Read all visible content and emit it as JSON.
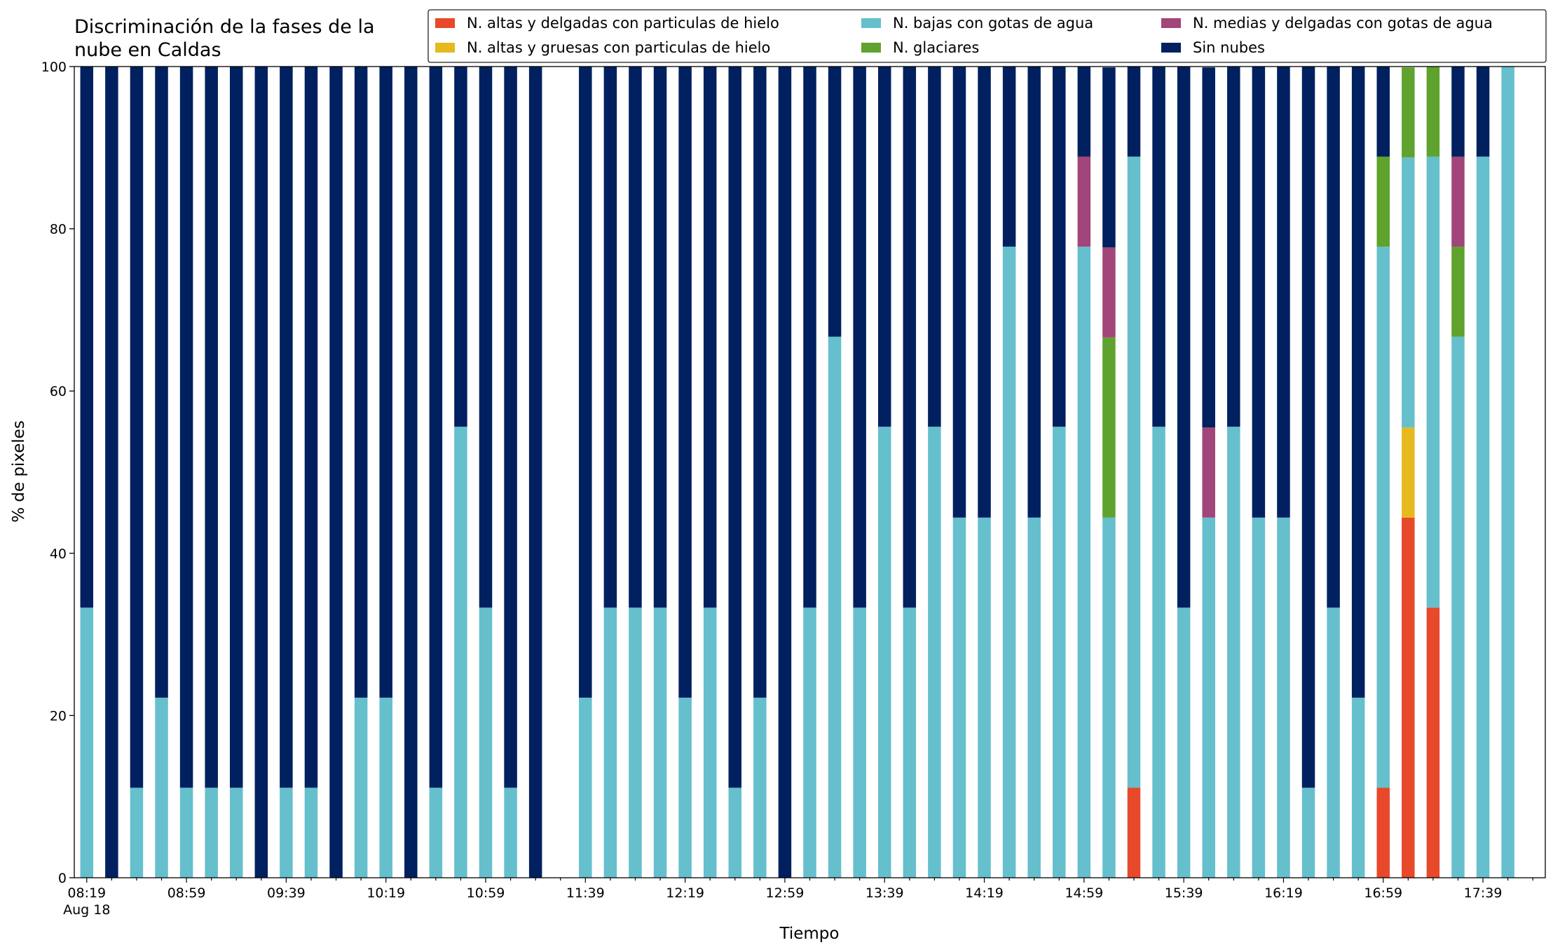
{
  "chart_data": {
    "type": "stacked_bar",
    "title": "Discriminación de la fases de la nube en Caldas",
    "x_label": "Tiempo",
    "y_label": "% de pixeles",
    "x_date_label": "Aug 18",
    "categories": [
      "08:19",
      null,
      null,
      null,
      "08:59",
      null,
      null,
      null,
      "09:39",
      null,
      null,
      null,
      "10:19",
      null,
      null,
      null,
      "10:59",
      null,
      null,
      null,
      "11:39",
      null,
      null,
      null,
      "12:19",
      null,
      null,
      null,
      "12:59",
      null,
      null,
      null,
      "13:39",
      null,
      null,
      null,
      "14:19",
      null,
      null,
      null,
      "14:59",
      null,
      null,
      null,
      "15:39",
      null,
      null,
      null,
      "16:19",
      null,
      null,
      null,
      "16:59",
      null,
      null,
      null,
      "17:39",
      null,
      null
    ],
    "series": [
      {
        "name": "N. altas y delgadas con particulas de hielo",
        "color": "#e8492b",
        "values": [
          0,
          0,
          0,
          0,
          0,
          0,
          0,
          0,
          0,
          0,
          0,
          0,
          0,
          0,
          0,
          0,
          0,
          0,
          0,
          null,
          0,
          0,
          0,
          0,
          0,
          0,
          0,
          0,
          0,
          0,
          0,
          0,
          0,
          0,
          0,
          0,
          0,
          0,
          0,
          0,
          0,
          0,
          11.1,
          0,
          0,
          0,
          0,
          0,
          0,
          0,
          0,
          0,
          11.1,
          44.4,
          33.3,
          0,
          0,
          0,
          null
        ]
      },
      {
        "name": "N. altas y gruesas con particulas de hielo",
        "color": "#e6b91e",
        "values": [
          0,
          0,
          0,
          0,
          0,
          0,
          0,
          0,
          0,
          0,
          0,
          0,
          0,
          0,
          0,
          0,
          0,
          0,
          0,
          null,
          0,
          0,
          0,
          0,
          0,
          0,
          0,
          0,
          0,
          0,
          0,
          0,
          0,
          0,
          0,
          0,
          0,
          0,
          0,
          0,
          0,
          0,
          0,
          0,
          0,
          0,
          0,
          0,
          0,
          0,
          0,
          0,
          0,
          11.1,
          0,
          0,
          0,
          0,
          null
        ]
      },
      {
        "name": "N. bajas con gotas de agua",
        "color": "#66bfcc",
        "values": [
          33.3,
          0,
          11.1,
          22.2,
          11.1,
          11.1,
          11.1,
          0,
          11.1,
          11.1,
          0,
          22.2,
          22.2,
          0,
          11.1,
          55.6,
          33.3,
          11.1,
          0,
          null,
          22.2,
          33.3,
          33.3,
          33.3,
          22.2,
          33.3,
          11.1,
          22.2,
          0,
          33.3,
          66.7,
          33.3,
          55.6,
          33.3,
          55.6,
          44.4,
          44.4,
          77.8,
          44.4,
          55.6,
          77.8,
          44.4,
          77.8,
          55.6,
          33.3,
          44.4,
          55.6,
          44.4,
          44.4,
          11.1,
          33.3,
          22.2,
          66.7,
          33.3,
          55.6,
          66.7,
          88.9,
          100,
          null
        ]
      },
      {
        "name": "N. glaciares",
        "color": "#5fa22d",
        "values": [
          0,
          0,
          0,
          0,
          0,
          0,
          0,
          0,
          0,
          0,
          0,
          0,
          0,
          0,
          0,
          0,
          0,
          0,
          0,
          null,
          0,
          0,
          0,
          0,
          0,
          0,
          0,
          0,
          0,
          0,
          0,
          0,
          0,
          0,
          0,
          0,
          0,
          0,
          0,
          0,
          0,
          22.2,
          0,
          0,
          0,
          0,
          0,
          0,
          0,
          0,
          0,
          0,
          11.1,
          11.1,
          11.1,
          11.1,
          0,
          0,
          null
        ]
      },
      {
        "name": "N. medias y delgadas con gotas de agua",
        "color": "#a1457a",
        "values": [
          0,
          0,
          0,
          0,
          0,
          0,
          0,
          0,
          0,
          0,
          0,
          0,
          0,
          0,
          0,
          0,
          0,
          0,
          0,
          null,
          0,
          0,
          0,
          0,
          0,
          0,
          0,
          0,
          0,
          0,
          0,
          0,
          0,
          0,
          0,
          0,
          0,
          0,
          0,
          0,
          11.1,
          11.1,
          0,
          0,
          0,
          11.1,
          0,
          0,
          0,
          0,
          0,
          0,
          0,
          0,
          0,
          11.1,
          0,
          0,
          null
        ]
      },
      {
        "name": "Sin nubes",
        "color": "#00205f",
        "values": [
          66.7,
          100,
          88.9,
          77.8,
          88.9,
          88.9,
          88.9,
          100,
          88.9,
          88.9,
          100,
          77.8,
          77.8,
          100,
          88.9,
          44.4,
          66.7,
          88.9,
          100,
          null,
          77.8,
          66.7,
          66.7,
          66.7,
          77.8,
          66.7,
          88.9,
          77.8,
          100,
          66.7,
          33.3,
          66.7,
          44.4,
          66.7,
          44.4,
          55.6,
          55.6,
          22.2,
          55.6,
          44.4,
          11.1,
          22.2,
          11.1,
          44.4,
          66.7,
          44.4,
          44.4,
          55.6,
          55.6,
          88.9,
          66.7,
          77.8,
          11.1,
          0,
          0,
          11.1,
          11.1,
          0,
          null
        ]
      }
    ],
    "ylim": [
      0,
      100
    ],
    "yticks": [
      0,
      20,
      40,
      60,
      80,
      100
    ],
    "grid": false,
    "legend": "top right"
  }
}
